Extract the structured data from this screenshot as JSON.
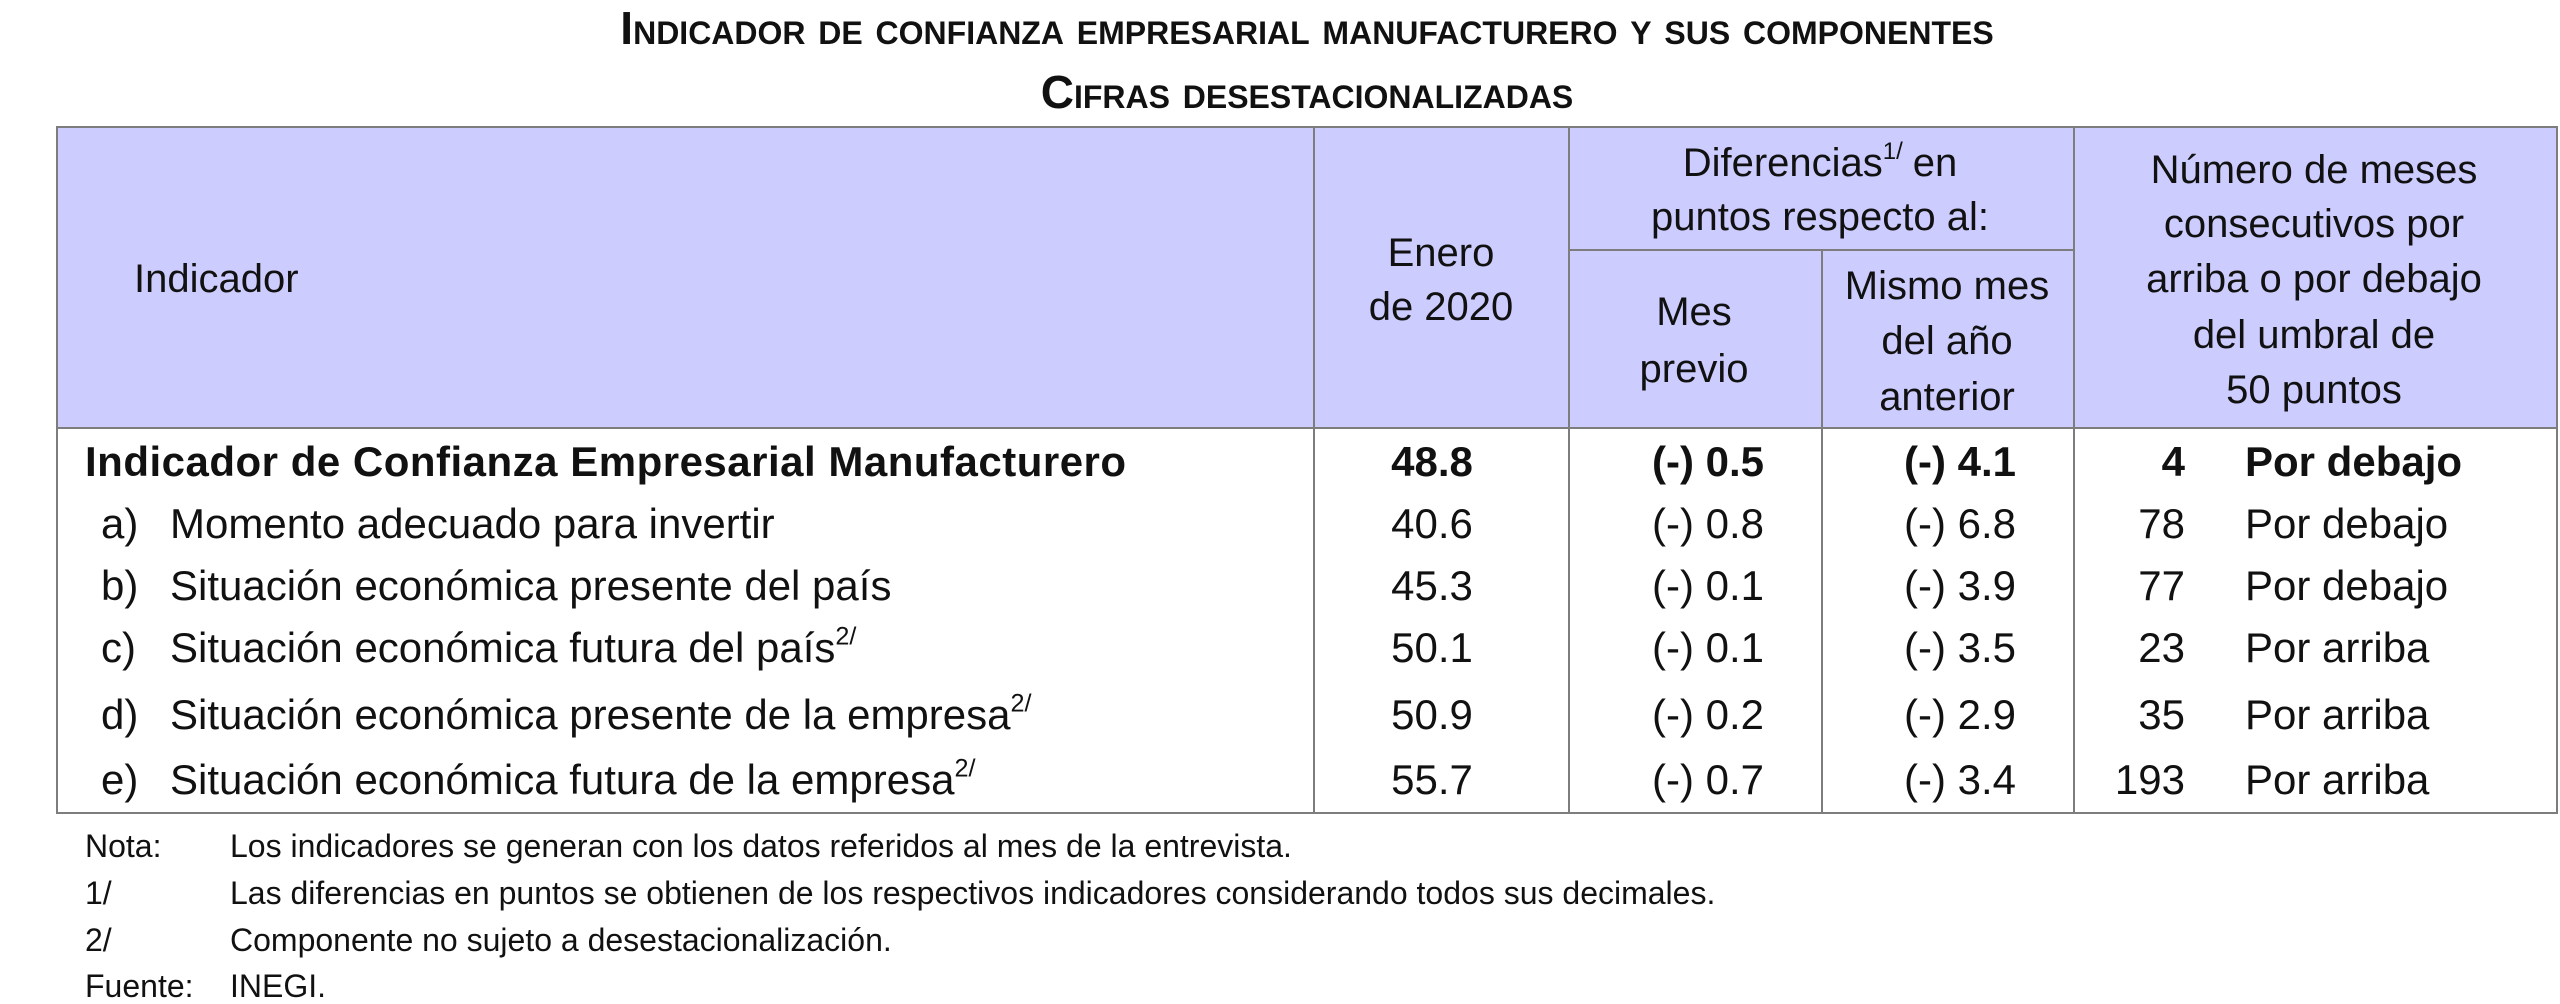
{
  "header": {
    "title": "Indicador de confianza empresarial manufacturero y sus componentes",
    "subtitle": "Cifras desestacionalizadas"
  },
  "table": {
    "columns": {
      "indicador": "Indicador",
      "periodo": [
        "Enero",
        "de 2020"
      ],
      "diferencias": {
        "text": "Diferencias",
        "sup": "1/",
        "after": "en",
        "line2": "puntos respecto al:"
      },
      "mes_previo": [
        "Mes",
        "previo"
      ],
      "mismo_mes": [
        "Mismo mes",
        "del año",
        "anterior"
      ],
      "meses": [
        "Número de meses",
        "consecutivos por",
        "arriba o por debajo",
        "del umbral de",
        "50 puntos"
      ]
    },
    "rows": [
      {
        "prefix": null,
        "label": "Indicador de Confianza Empresarial Manufacturero",
        "sup": null,
        "value": 48.8,
        "mes_previo": "(-) 0.5",
        "mismo_mes": "(-) 4.1",
        "meses": 4,
        "umbral": "Por debajo"
      },
      {
        "prefix": "a)",
        "label": "Momento adecuado para invertir",
        "sup": null,
        "value": 40.6,
        "mes_previo": "(-) 0.8",
        "mismo_mes": "(-) 6.8",
        "meses": 78,
        "umbral": "Por debajo"
      },
      {
        "prefix": "b)",
        "label": "Situación económica presente del país",
        "sup": null,
        "value": 45.3,
        "mes_previo": "(-) 0.1",
        "mismo_mes": "(-) 3.9",
        "meses": 77,
        "umbral": "Por debajo"
      },
      {
        "prefix": "c)",
        "label": "Situación económica futura del país",
        "sup": "2/",
        "value": 50.1,
        "mes_previo": "(-) 0.1",
        "mismo_mes": "(-) 3.5",
        "meses": 23,
        "umbral": "Por arriba"
      },
      {
        "prefix": "d)",
        "label": "Situación económica presente de la empresa",
        "sup": "2/",
        "value": 50.9,
        "mes_previo": "(-) 0.2",
        "mismo_mes": "(-) 2.9",
        "meses": 35,
        "umbral": "Por arriba"
      },
      {
        "prefix": "e)",
        "label": "Situación económica futura de la empresa",
        "sup": "2/",
        "value": 55.7,
        "mes_previo": "(-) 0.7",
        "mismo_mes": "(-) 3.4",
        "meses": 193,
        "umbral": "Por arriba"
      }
    ]
  },
  "notes": [
    {
      "label": "Nota:",
      "text": "Los indicadores se generan con los datos referidos al mes de la entrevista."
    },
    {
      "label": "1/",
      "text": "Las diferencias en puntos se obtienen de los respectivos indicadores considerando todos sus decimales."
    },
    {
      "label": "2/",
      "text": "Componente no sujeto a desestacionalización."
    },
    {
      "label": "Fuente:",
      "text": "INEGI."
    }
  ]
}
